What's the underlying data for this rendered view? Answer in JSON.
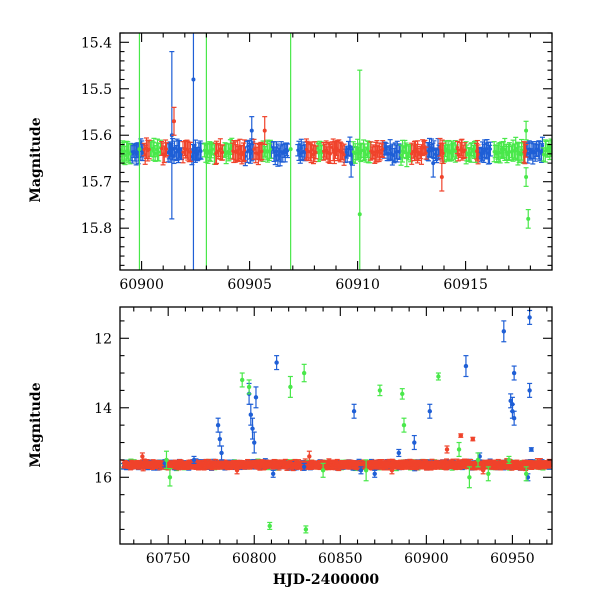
{
  "colors": {
    "blue": "#1f5fd6",
    "green": "#49e84a",
    "red": "#f0432b",
    "axis": "#000000"
  },
  "chart_data": [
    {
      "type": "scatter",
      "title": "",
      "xlabel": "",
      "ylabel": "Magnitude",
      "xlim": [
        60899,
        60919
      ],
      "ylim": [
        15.89,
        15.38
      ],
      "y_inverted": true,
      "xticks": [
        60900,
        60905,
        60910,
        60915
      ],
      "xtick_labels": [
        "60900",
        "60905",
        "60910",
        "60915"
      ],
      "yticks": [
        15.4,
        15.5,
        15.6,
        15.7,
        15.8
      ],
      "ytick_labels": [
        "15.4",
        "15.5",
        "15.6",
        "15.7",
        "15.8"
      ],
      "baseline": 15.635,
      "series": [
        {
          "name": "blue",
          "color": "#1f5fd6",
          "bands": [
            [
              60899.5,
              60900.1
            ],
            [
              60901.2,
              60901.9
            ],
            [
              60902.3,
              60902.8
            ],
            [
              60904.8,
              60905.2
            ],
            [
              60906.0,
              60906.8
            ],
            [
              60907.2,
              60907.6
            ],
            [
              60909.4,
              60909.8
            ],
            [
              60911.2,
              60912.0
            ],
            [
              60913.2,
              60913.8
            ],
            [
              60915.6,
              60916.2
            ],
            [
              60917.8,
              60918.6
            ]
          ],
          "points": [
            {
              "x": 60901.4,
              "y": 15.6,
              "err": 0.18
            },
            {
              "x": 60902.4,
              "y": 15.48,
              "err": 0.45
            },
            {
              "x": 60905.1,
              "y": 15.59,
              "err": 0.03
            },
            {
              "x": 60909.7,
              "y": 15.66,
              "err": 0.03
            },
            {
              "x": 60913.5,
              "y": 15.66,
              "err": 0.03
            }
          ]
        },
        {
          "name": "green",
          "color": "#49e84a",
          "bands": [
            [
              60899.0,
              60899.5
            ],
            [
              60900.4,
              60900.9
            ],
            [
              60902.9,
              60903.4
            ],
            [
              60903.8,
              60904.2
            ],
            [
              60905.6,
              60906.0
            ],
            [
              60908.1,
              60908.4
            ],
            [
              60909.8,
              60910.6
            ],
            [
              60912.0,
              60912.5
            ],
            [
              60914.0,
              60914.6
            ],
            [
              60915.0,
              60915.5
            ],
            [
              60916.3,
              60917.7
            ],
            [
              60918.6,
              60919.0
            ]
          ],
          "points": [
            {
              "x": 60899.9,
              "y": 15.63,
              "err": 0.45
            },
            {
              "x": 60903.0,
              "y": 15.62,
              "err": 0.3
            },
            {
              "x": 60906.9,
              "y": 15.63,
              "err": 0.4
            },
            {
              "x": 60910.1,
              "y": 15.77,
              "err": 0.31
            },
            {
              "x": 60917.8,
              "y": 15.69,
              "err": 0.02
            },
            {
              "x": 60917.9,
              "y": 15.78,
              "err": 0.02
            },
            {
              "x": 60917.8,
              "y": 15.59,
              "err": 0.02
            }
          ]
        },
        {
          "name": "red",
          "color": "#f0432b",
          "bands": [
            [
              60900.1,
              60900.4
            ],
            [
              60900.9,
              60901.2
            ],
            [
              60901.9,
              60902.3
            ],
            [
              60903.4,
              60903.8
            ],
            [
              60904.2,
              60904.8
            ],
            [
              60905.2,
              60905.6
            ],
            [
              60907.6,
              60908.1
            ],
            [
              60908.4,
              60909.4
            ],
            [
              60910.6,
              60911.2
            ],
            [
              60912.5,
              60913.2
            ],
            [
              60913.8,
              60914.0
            ],
            [
              60914.6,
              60915.0
            ],
            [
              60915.5,
              60915.6
            ],
            [
              60917.7,
              60917.8
            ]
          ],
          "points": [
            {
              "x": 60901.5,
              "y": 15.57,
              "err": 0.03
            },
            {
              "x": 60905.7,
              "y": 15.59,
              "err": 0.03
            },
            {
              "x": 60913.9,
              "y": 15.69,
              "err": 0.03
            }
          ]
        }
      ]
    },
    {
      "type": "scatter",
      "title": "",
      "xlabel": "HJD-2400000",
      "ylabel": "Magnitude",
      "xlim": [
        60722,
        60973
      ],
      "ylim": [
        17.92,
        11.1
      ],
      "y_inverted": true,
      "xticks": [
        60750,
        60800,
        60850,
        60900,
        60950
      ],
      "xtick_labels": [
        "60750",
        "60800",
        "60850",
        "60900",
        "60950"
      ],
      "yticks": [
        12,
        14,
        16
      ],
      "ytick_labels": [
        "12",
        "14",
        "16"
      ],
      "baseline": 15.64,
      "series": [
        {
          "name": "blue",
          "color": "#1f5fd6",
          "points": [
            {
              "x": 60748,
              "y": 15.6,
              "err": 0.1
            },
            {
              "x": 60765,
              "y": 15.5,
              "err": 0.1
            },
            {
              "x": 60779,
              "y": 14.5,
              "err": 0.2
            },
            {
              "x": 60780,
              "y": 14.9,
              "err": 0.2
            },
            {
              "x": 60781,
              "y": 15.3,
              "err": 0.2
            },
            {
              "x": 60797,
              "y": 13.6,
              "err": 0.3
            },
            {
              "x": 60798,
              "y": 14.2,
              "err": 0.3
            },
            {
              "x": 60799,
              "y": 14.6,
              "err": 0.3
            },
            {
              "x": 60800,
              "y": 15.0,
              "err": 0.3
            },
            {
              "x": 60801,
              "y": 13.7,
              "err": 0.3
            },
            {
              "x": 60811,
              "y": 15.9,
              "err": 0.1
            },
            {
              "x": 60813,
              "y": 12.7,
              "err": 0.2
            },
            {
              "x": 60829,
              "y": 15.7,
              "err": 0.1
            },
            {
              "x": 60858,
              "y": 14.1,
              "err": 0.2
            },
            {
              "x": 60862,
              "y": 15.8,
              "err": 0.1
            },
            {
              "x": 60870,
              "y": 15.9,
              "err": 0.1
            },
            {
              "x": 60884,
              "y": 15.3,
              "err": 0.1
            },
            {
              "x": 60893,
              "y": 15.0,
              "err": 0.2
            },
            {
              "x": 60902,
              "y": 14.1,
              "err": 0.2
            },
            {
              "x": 60923,
              "y": 12.8,
              "err": 0.3
            },
            {
              "x": 60931,
              "y": 15.4,
              "err": 0.1
            },
            {
              "x": 60945,
              "y": 11.8,
              "err": 0.3
            },
            {
              "x": 60949,
              "y": 13.8,
              "err": 0.2
            },
            {
              "x": 60950,
              "y": 13.9,
              "err": 0.2
            },
            {
              "x": 60951,
              "y": 13.0,
              "err": 0.2
            },
            {
              "x": 60950,
              "y": 14.1,
              "err": 0.2
            },
            {
              "x": 60951,
              "y": 14.3,
              "err": 0.2
            },
            {
              "x": 60960,
              "y": 13.5,
              "err": 0.2
            },
            {
              "x": 60960,
              "y": 11.4,
              "err": 0.2
            },
            {
              "x": 60961,
              "y": 15.2,
              "err": 0.05
            },
            {
              "x": 60959,
              "y": 16.0,
              "err": 0.1
            }
          ]
        },
        {
          "name": "green",
          "color": "#49e84a",
          "points": [
            {
              "x": 60749,
              "y": 15.5,
              "err": 0.25
            },
            {
              "x": 60751,
              "y": 16.0,
              "err": 0.25
            },
            {
              "x": 60793,
              "y": 13.2,
              "err": 0.2
            },
            {
              "x": 60797,
              "y": 13.4,
              "err": 0.2
            },
            {
              "x": 60809,
              "y": 17.4,
              "err": 0.1
            },
            {
              "x": 60821,
              "y": 13.4,
              "err": 0.3
            },
            {
              "x": 60829,
              "y": 13.0,
              "err": 0.25
            },
            {
              "x": 60830,
              "y": 17.5,
              "err": 0.1
            },
            {
              "x": 60840,
              "y": 15.8,
              "err": 0.2
            },
            {
              "x": 60865,
              "y": 15.8,
              "err": 0.3
            },
            {
              "x": 60873,
              "y": 13.5,
              "err": 0.15
            },
            {
              "x": 60886,
              "y": 13.6,
              "err": 0.15
            },
            {
              "x": 60887,
              "y": 14.5,
              "err": 0.2
            },
            {
              "x": 60907,
              "y": 13.1,
              "err": 0.1
            },
            {
              "x": 60919,
              "y": 15.2,
              "err": 0.2
            },
            {
              "x": 60925,
              "y": 16.0,
              "err": 0.3
            },
            {
              "x": 60930,
              "y": 15.5,
              "err": 0.2
            },
            {
              "x": 60936,
              "y": 15.9,
              "err": 0.2
            },
            {
              "x": 60948,
              "y": 15.5,
              "err": 0.1
            },
            {
              "x": 60958,
              "y": 15.9,
              "err": 0.2
            }
          ]
        },
        {
          "name": "red",
          "color": "#f0432b",
          "points": [
            {
              "x": 60735,
              "y": 15.4,
              "err": 0.1
            },
            {
              "x": 60790,
              "y": 15.8,
              "err": 0.1
            },
            {
              "x": 60819,
              "y": 15.7,
              "err": 0.1
            },
            {
              "x": 60832,
              "y": 15.4,
              "err": 0.15
            },
            {
              "x": 60880,
              "y": 15.8,
              "err": 0.1
            },
            {
              "x": 60912,
              "y": 15.2,
              "err": 0.1
            },
            {
              "x": 60920,
              "y": 14.8,
              "err": 0.05
            },
            {
              "x": 60927,
              "y": 14.9,
              "err": 0.05
            },
            {
              "x": 60933,
              "y": 15.8,
              "err": 0.1
            }
          ]
        }
      ]
    }
  ]
}
